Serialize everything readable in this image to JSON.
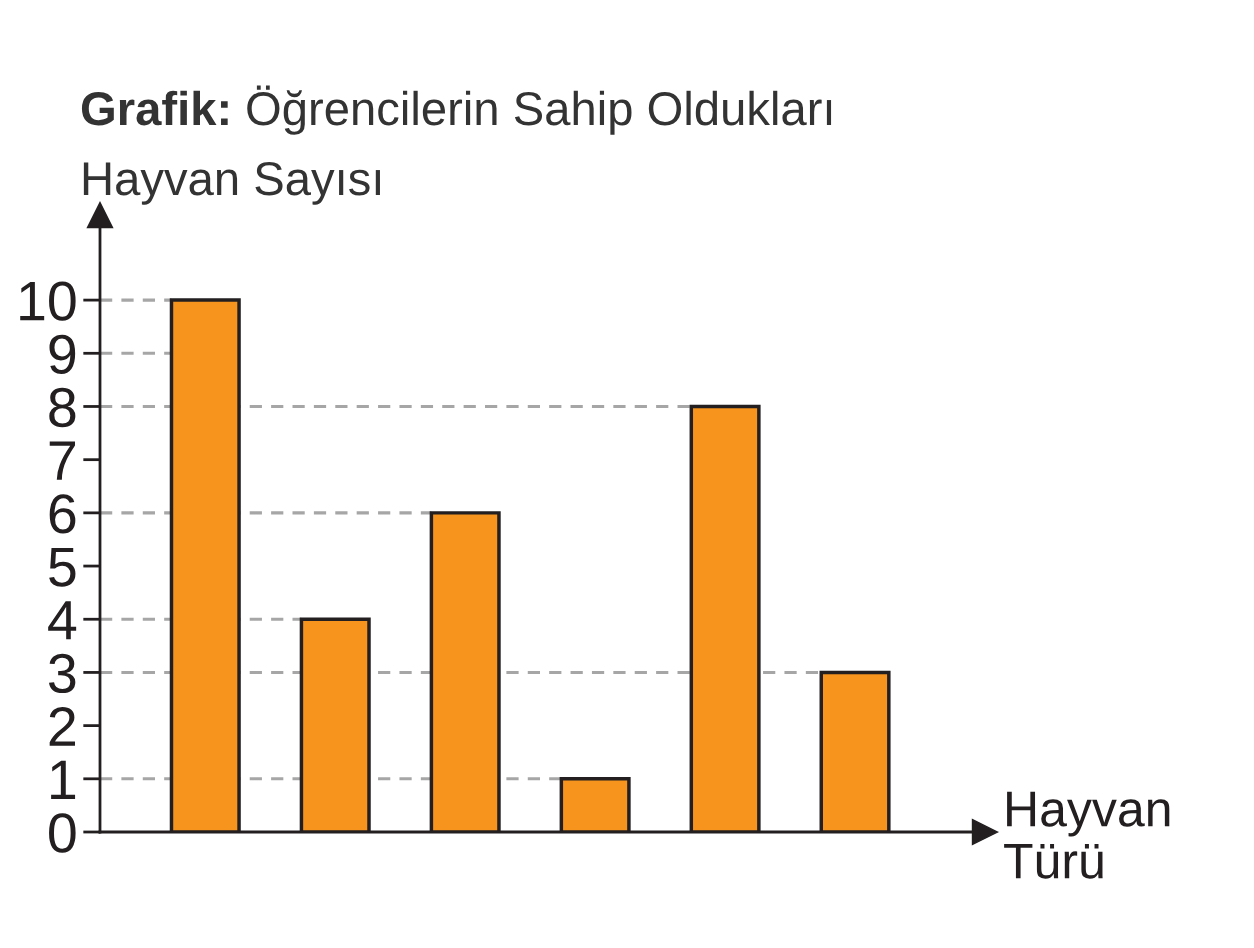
{
  "chart_data": {
    "type": "bar",
    "title": "Grafik: Öğrencilerin Sahip Oldukları",
    "ylabel": "Hayvan Sayısı",
    "xlabel": "Hayvan Türü",
    "categories": [
      null,
      null,
      null,
      null,
      null,
      null
    ],
    "values": [
      10,
      4,
      6,
      1,
      8,
      3
    ],
    "color": "#f7941d",
    "ylim": [
      0,
      11.6
    ],
    "yticks": [
      0,
      1,
      2,
      3,
      4,
      5,
      6,
      7,
      8,
      9,
      10
    ],
    "grid": false,
    "ref_lines": [
      {
        "axis": "y",
        "value": 10,
        "color": "#a6a6a6",
        "line_style": "dashed"
      },
      {
        "axis": "y",
        "value": 9,
        "color": "#a6a6a6",
        "line_style": "dashed"
      },
      {
        "axis": "y",
        "value": 8,
        "color": "#a6a6a6",
        "line_style": "dashed"
      },
      {
        "axis": "y",
        "value": 6,
        "color": "#a6a6a6",
        "line_style": "dashed"
      },
      {
        "axis": "y",
        "value": 4,
        "color": "#a6a6a6",
        "line_style": "dashed"
      },
      {
        "axis": "y",
        "value": 3,
        "color": "#a6a6a6",
        "line_style": "dashed"
      },
      {
        "axis": "y",
        "value": 1,
        "color": "#a6a6a6",
        "line_style": "dashed"
      }
    ]
  }
}
